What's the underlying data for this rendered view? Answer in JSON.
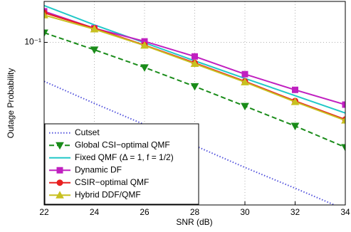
{
  "chart_data": {
    "type": "line",
    "x_label": "SNR (dB)",
    "y_label": "Outage Probability",
    "x": [
      22,
      24,
      26,
      28,
      30,
      32,
      34
    ],
    "xlim": [
      22,
      34
    ],
    "xticks": [
      22,
      24,
      26,
      28,
      30,
      32,
      34
    ],
    "ylim": [
      0.02,
      0.15
    ],
    "yticks": [
      {
        "value": 0.1,
        "label": "10⁻¹"
      }
    ],
    "log_y": true,
    "grid": true,
    "legend": "lower left",
    "series": [
      {
        "name": "Cutset",
        "color": "#5555dd",
        "style": "dotted",
        "marker": "none",
        "values": [
          0.068,
          0.0547,
          0.0443,
          0.036,
          0.029,
          0.0236,
          0.0191
        ]
      },
      {
        "name": "Global CSI−optimal QMF",
        "color": "#1a8c1a",
        "style": "dashed",
        "marker": "triangle-down",
        "values": [
          0.11,
          0.093,
          0.078,
          0.0647,
          0.0532,
          0.0437,
          0.0354
        ]
      },
      {
        "name": "Fixed QMF (Δ = 1, f = 1/2)",
        "color": "#22c8c8",
        "style": "solid",
        "marker": "none",
        "values": [
          0.144,
          0.119,
          0.0996,
          0.0833,
          0.07,
          0.059,
          0.0497
        ]
      },
      {
        "name": "Dynamic DF",
        "color": "#c020c0",
        "style": "solid",
        "marker": "square",
        "values": [
          0.136,
          0.115,
          0.101,
          0.087,
          0.073,
          0.0625,
          0.054
        ]
      },
      {
        "name": "CSIR−optimal QMF",
        "color": "#e82020",
        "style": "solid",
        "marker": "circle",
        "values": [
          0.134,
          0.115,
          0.0973,
          0.0816,
          0.068,
          0.056,
          0.0466
        ]
      },
      {
        "name": "Hybrid DDF/QMF",
        "color": "#c8c020",
        "style": "solid",
        "marker": "triangle-up",
        "values": [
          0.131,
          0.114,
          0.097,
          0.081,
          0.0675,
          0.0555,
          0.0462
        ]
      }
    ]
  }
}
